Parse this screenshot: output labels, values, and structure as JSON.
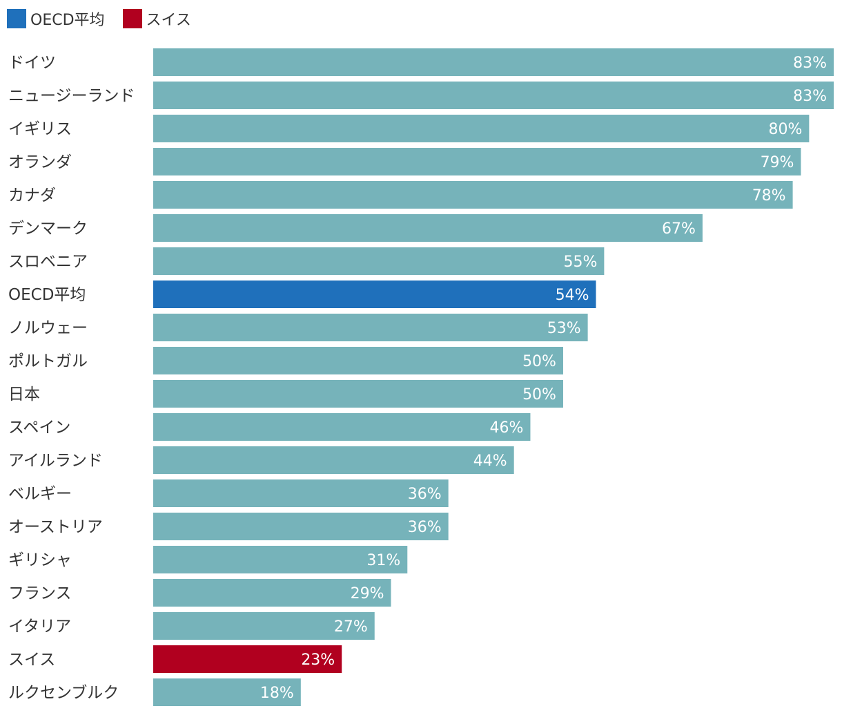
{
  "legend": [
    {
      "label": "OECD平均",
      "color": "#1f70bb"
    },
    {
      "label": "スイス",
      "color": "#b1001f"
    }
  ],
  "chart_data": {
    "type": "bar",
    "orientation": "horizontal",
    "title": "",
    "xlabel": "",
    "ylabel": "",
    "xlim": [
      0,
      83
    ],
    "grid": false,
    "legend_position": "top-left",
    "value_suffix": "%",
    "default_color": "#76b3ba",
    "categories": [
      "ドイツ",
      "ニュージーランド",
      "イギリス",
      "オランダ",
      "カナダ",
      "デンマーク",
      "スロベニア",
      "OECD平均",
      "ノルウェー",
      "ポルトガル",
      "日本",
      "スペイン",
      "アイルランド",
      "ベルギー",
      "オーストリア",
      "ギリシャ",
      "フランス",
      "イタリア",
      "スイス",
      "ルクセンブルク"
    ],
    "values": [
      83,
      83,
      80,
      79,
      78,
      67,
      55,
      54,
      53,
      50,
      50,
      46,
      44,
      36,
      36,
      31,
      29,
      27,
      23,
      18
    ],
    "value_labels": [
      "83%",
      "83%",
      "80%",
      "79%",
      "78%",
      "67%",
      "55%",
      "54%",
      "53%",
      "50%",
      "50%",
      "46%",
      "44%",
      "36%",
      "36%",
      "31%",
      "29%",
      "27%",
      "23%",
      "18%"
    ],
    "highlights": {
      "OECD平均": "#1f70bb",
      "スイス": "#b1001f"
    }
  }
}
